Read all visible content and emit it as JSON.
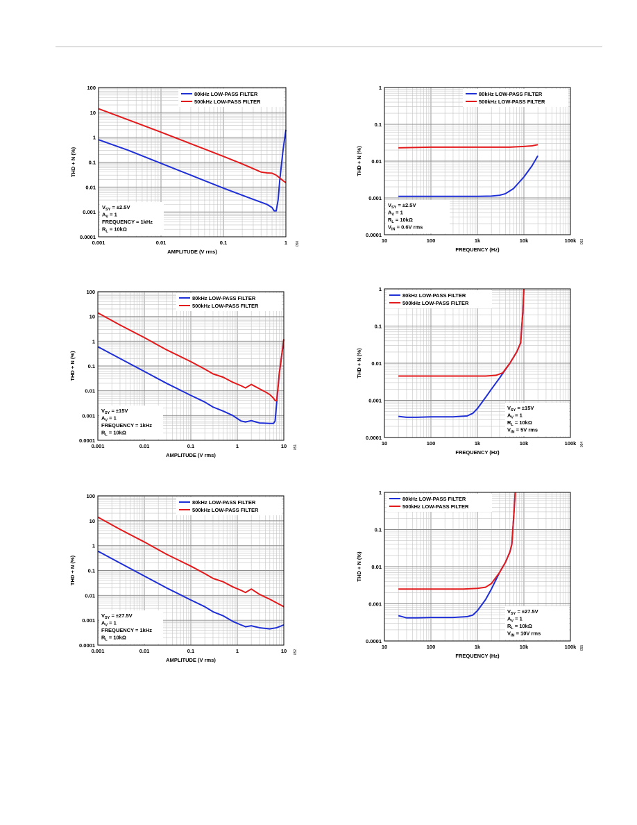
{
  "chart_data": [
    {
      "type": "line",
      "xlabel": "AMPLITUDE (V rms)",
      "ylabel": "THD + N (%)",
      "xscale": "log",
      "yscale": "log",
      "xlim": [
        0.001,
        1
      ],
      "ylim": [
        0.0001,
        100
      ],
      "xticks": [
        "0.001",
        "0.01",
        "0.1",
        "1"
      ],
      "yticks": [
        "100",
        "10",
        "1",
        "0.1",
        "0.01",
        "0.001",
        "0.0001"
      ],
      "grid": true,
      "legend_position": "top-right",
      "annotation_position": "bottom-left",
      "annotation": [
        {
          "base": "V",
          "sub": "SY",
          "rest": " = ±2.5V"
        },
        {
          "base": "A",
          "sub": "V",
          "rest": " = 1"
        },
        {
          "base": "FREQUENCY = 1kHz",
          "sub": "",
          "rest": ""
        },
        {
          "base": "R",
          "sub": "L",
          "rest": " = 10kΩ"
        }
      ],
      "figure_id": "050",
      "series": [
        {
          "name": "80kHz LOW-PASS FILTER",
          "color": "#1f2fd6",
          "x": [
            0.001,
            0.003,
            0.01,
            0.03,
            0.1,
            0.3,
            0.5,
            0.6,
            0.65,
            0.7,
            0.75,
            0.8,
            0.9,
            1.0
          ],
          "y": [
            0.8,
            0.3,
            0.09,
            0.03,
            0.009,
            0.0032,
            0.002,
            0.0015,
            0.0011,
            0.0011,
            0.003,
            0.02,
            0.3,
            2.0
          ]
        },
        {
          "name": "500kHz LOW-PASS FILTER",
          "color": "#e31a1c",
          "x": [
            0.001,
            0.003,
            0.01,
            0.03,
            0.1,
            0.2,
            0.3,
            0.4,
            0.5,
            0.6,
            0.7,
            0.8,
            0.9,
            1.0
          ],
          "y": [
            14,
            5,
            1.6,
            0.55,
            0.17,
            0.085,
            0.055,
            0.04,
            0.037,
            0.036,
            0.03,
            0.023,
            0.018,
            0.015
          ]
        }
      ]
    },
    {
      "type": "line",
      "xlabel": "FREQUENCY (Hz)",
      "ylabel": "THD + N (%)",
      "xscale": "log",
      "yscale": "log",
      "xlim": [
        10,
        100000
      ],
      "ylim": [
        0.0001,
        1
      ],
      "xticks": [
        "10",
        "100",
        "1k",
        "10k",
        "100k"
      ],
      "yticks": [
        "1",
        "0.1",
        "0.01",
        "0.001",
        "0.0001"
      ],
      "grid": true,
      "legend_position": "top-right",
      "annotation_position": "bottom-left",
      "annotation": [
        {
          "base": "V",
          "sub": "SY",
          "rest": " = ±2.5V"
        },
        {
          "base": "A",
          "sub": "V",
          "rest": " = 1"
        },
        {
          "base": "R",
          "sub": "L",
          "rest": " = 10kΩ"
        },
        {
          "base": "V",
          "sub": "IN",
          "rest": " = 0.6V rms"
        }
      ],
      "figure_id": "053",
      "series": [
        {
          "name": "80kHz LOW-PASS FILTER",
          "color": "#1f2fd6",
          "x": [
            20,
            50,
            100,
            300,
            1000,
            2000,
            3000,
            4000,
            6000,
            8000,
            10000,
            15000,
            20000
          ],
          "y": [
            0.0011,
            0.0011,
            0.0011,
            0.0011,
            0.0011,
            0.00112,
            0.00118,
            0.0013,
            0.0018,
            0.0027,
            0.0037,
            0.0075,
            0.014
          ]
        },
        {
          "name": "500kHz LOW-PASS FILTER",
          "color": "#e31a1c",
          "x": [
            20,
            100,
            1000,
            5000,
            10000,
            15000,
            20000
          ],
          "y": [
            0.023,
            0.024,
            0.024,
            0.024,
            0.025,
            0.026,
            0.028
          ]
        }
      ]
    },
    {
      "type": "line",
      "xlabel": "AMPLITUDE (V rms)",
      "ylabel": "THD + N (%)",
      "xscale": "log",
      "yscale": "log",
      "xlim": [
        0.001,
        10
      ],
      "ylim": [
        0.0001,
        100
      ],
      "xticks": [
        "0.001",
        "0.01",
        "0.1",
        "1",
        "10"
      ],
      "yticks": [
        "100",
        "10",
        "1",
        "0.1",
        "0.01",
        "0.001",
        "0.0001"
      ],
      "grid": true,
      "legend_position": "top-right",
      "annotation_position": "bottom-left",
      "annotation": [
        {
          "base": "V",
          "sub": "SY",
          "rest": " = ±15V"
        },
        {
          "base": "A",
          "sub": "V",
          "rest": " = 1"
        },
        {
          "base": "FREQUENCY = 1kHz",
          "sub": "",
          "rest": ""
        },
        {
          "base": "R",
          "sub": "L",
          "rest": " = 10kΩ"
        }
      ],
      "figure_id": "051",
      "series": [
        {
          "name": "80kHz LOW-PASS FILTER",
          "color": "#1f2fd6",
          "x": [
            0.001,
            0.003,
            0.01,
            0.03,
            0.1,
            0.2,
            0.3,
            0.5,
            0.8,
            1.2,
            1.5,
            2,
            3,
            5,
            6,
            6.5,
            7,
            8,
            10
          ],
          "y": [
            0.6,
            0.2,
            0.06,
            0.02,
            0.0065,
            0.0035,
            0.0022,
            0.0015,
            0.001,
            0.0006,
            0.00055,
            0.00062,
            0.0005,
            0.00048,
            0.00048,
            0.0006,
            0.003,
            0.05,
            1.2
          ]
        },
        {
          "name": "500kHz LOW-PASS FILTER",
          "color": "#e31a1c",
          "x": [
            0.001,
            0.003,
            0.01,
            0.03,
            0.1,
            0.2,
            0.3,
            0.5,
            0.8,
            1.2,
            1.5,
            2,
            3,
            4,
            5,
            6,
            6.5,
            7,
            8,
            10
          ],
          "y": [
            14,
            4.5,
            1.4,
            0.45,
            0.15,
            0.075,
            0.048,
            0.035,
            0.022,
            0.016,
            0.013,
            0.018,
            0.012,
            0.009,
            0.007,
            0.005,
            0.004,
            0.004,
            0.05,
            1.2
          ]
        }
      ]
    },
    {
      "type": "line",
      "xlabel": "FREQUENCY (Hz)",
      "ylabel": "THD + N (%)",
      "xscale": "log",
      "yscale": "log",
      "xlim": [
        10,
        100000
      ],
      "ylim": [
        0.0001,
        1
      ],
      "xticks": [
        "10",
        "100",
        "1k",
        "10k",
        "100k"
      ],
      "yticks": [
        "1",
        "0.1",
        "0.01",
        "0.001",
        "0.0001"
      ],
      "grid": true,
      "legend_position": "top-left",
      "annotation_position": "bottom-right",
      "annotation": [
        {
          "base": "V",
          "sub": "SY",
          "rest": " = ±15V"
        },
        {
          "base": "A",
          "sub": "V",
          "rest": " = 1"
        },
        {
          "base": "R",
          "sub": "L",
          "rest": " = 10kΩ"
        },
        {
          "base": "V",
          "sub": "IN",
          "rest": " = 5V rms"
        }
      ],
      "figure_id": "054",
      "series": [
        {
          "name": "80kHz LOW-PASS FILTER",
          "color": "#1f2fd6",
          "x": [
            20,
            30,
            50,
            100,
            300,
            600,
            800,
            1000,
            1500,
            2000,
            3000,
            5000,
            7000,
            8500,
            9500,
            10000
          ],
          "y": [
            0.00037,
            0.00035,
            0.00035,
            0.00036,
            0.00036,
            0.00038,
            0.00045,
            0.0006,
            0.0012,
            0.002,
            0.004,
            0.01,
            0.02,
            0.035,
            0.25,
            1.0
          ]
        },
        {
          "name": "500kHz LOW-PASS FILTER",
          "color": "#e31a1c",
          "x": [
            20,
            50,
            100,
            500,
            1500,
            2500,
            3500,
            5000,
            7000,
            8500,
            9500,
            10000
          ],
          "y": [
            0.0045,
            0.0045,
            0.0045,
            0.0045,
            0.0045,
            0.0047,
            0.0055,
            0.01,
            0.02,
            0.035,
            0.25,
            1.0
          ]
        }
      ]
    },
    {
      "type": "line",
      "xlabel": "AMPLITUDE (V rms)",
      "ylabel": "THD + N (%)",
      "xscale": "log",
      "yscale": "log",
      "xlim": [
        0.001,
        10
      ],
      "ylim": [
        0.0001,
        100
      ],
      "xticks": [
        "0.001",
        "0.01",
        "0.1",
        "1",
        "10"
      ],
      "yticks": [
        "100",
        "10",
        "1",
        "0.1",
        "0.01",
        "0.001",
        "0.0001"
      ],
      "grid": true,
      "legend_position": "top-right",
      "annotation_position": "bottom-left",
      "annotation": [
        {
          "base": "V",
          "sub": "SY",
          "rest": " = ±27.5V"
        },
        {
          "base": "A",
          "sub": "V",
          "rest": " = 1"
        },
        {
          "base": "FREQUENCY = 1kHz",
          "sub": "",
          "rest": ""
        },
        {
          "base": "R",
          "sub": "L",
          "rest": " = 10kΩ"
        }
      ],
      "figure_id": "052",
      "series": [
        {
          "name": "80kHz LOW-PASS FILTER",
          "color": "#1f2fd6",
          "x": [
            0.001,
            0.003,
            0.01,
            0.03,
            0.1,
            0.2,
            0.3,
            0.5,
            0.8,
            1.2,
            1.5,
            2,
            3,
            5,
            7,
            10
          ],
          "y": [
            0.6,
            0.2,
            0.06,
            0.02,
            0.0065,
            0.0035,
            0.0022,
            0.0015,
            0.0009,
            0.00065,
            0.00055,
            0.0006,
            0.0005,
            0.00045,
            0.0005,
            0.00065
          ]
        },
        {
          "name": "500kHz LOW-PASS FILTER",
          "color": "#e31a1c",
          "x": [
            0.001,
            0.003,
            0.01,
            0.03,
            0.1,
            0.2,
            0.3,
            0.5,
            0.8,
            1.2,
            1.5,
            2,
            3,
            5,
            7,
            10
          ],
          "y": [
            14,
            4.5,
            1.4,
            0.45,
            0.15,
            0.075,
            0.048,
            0.035,
            0.022,
            0.016,
            0.013,
            0.018,
            0.011,
            0.007,
            0.005,
            0.0035
          ]
        }
      ]
    },
    {
      "type": "line",
      "xlabel": "FREQUENCY (Hz)",
      "ylabel": "THD + N (%)",
      "xscale": "log",
      "yscale": "log",
      "xlim": [
        10,
        100000
      ],
      "ylim": [
        0.0001,
        1
      ],
      "xticks": [
        "10",
        "100",
        "1k",
        "10k",
        "100k"
      ],
      "yticks": [
        "1",
        "0.1",
        "0.01",
        "0.001",
        "0.0001"
      ],
      "grid": true,
      "legend_position": "top-left",
      "annotation_position": "bottom-right",
      "annotation": [
        {
          "base": "V",
          "sub": "SY",
          "rest": " = ±27.5V"
        },
        {
          "base": "A",
          "sub": "V",
          "rest": " = 1"
        },
        {
          "base": "R",
          "sub": "L",
          "rest": " = 10kΩ"
        },
        {
          "base": "V",
          "sub": "IN",
          "rest": " = 10V rms"
        }
      ],
      "figure_id": "055",
      "series": [
        {
          "name": "80kHz LOW-PASS FILTER",
          "color": "#1f2fd6",
          "x": [
            20,
            30,
            50,
            100,
            300,
            600,
            800,
            1000,
            1500,
            2000,
            3000,
            4000,
            5000,
            5500,
            6000,
            6500
          ],
          "y": [
            0.00048,
            0.00042,
            0.00042,
            0.00043,
            0.00043,
            0.00045,
            0.0005,
            0.00065,
            0.0013,
            0.0025,
            0.007,
            0.013,
            0.025,
            0.04,
            0.2,
            1.0
          ]
        },
        {
          "name": "500kHz LOW-PASS FILTER",
          "color": "#e31a1c",
          "x": [
            20,
            50,
            100,
            500,
            1000,
            1500,
            2000,
            3000,
            4000,
            5000,
            5500,
            6000,
            6500
          ],
          "y": [
            0.0025,
            0.0025,
            0.0025,
            0.0025,
            0.0026,
            0.0028,
            0.0035,
            0.007,
            0.013,
            0.025,
            0.04,
            0.2,
            1.0
          ]
        }
      ]
    }
  ]
}
